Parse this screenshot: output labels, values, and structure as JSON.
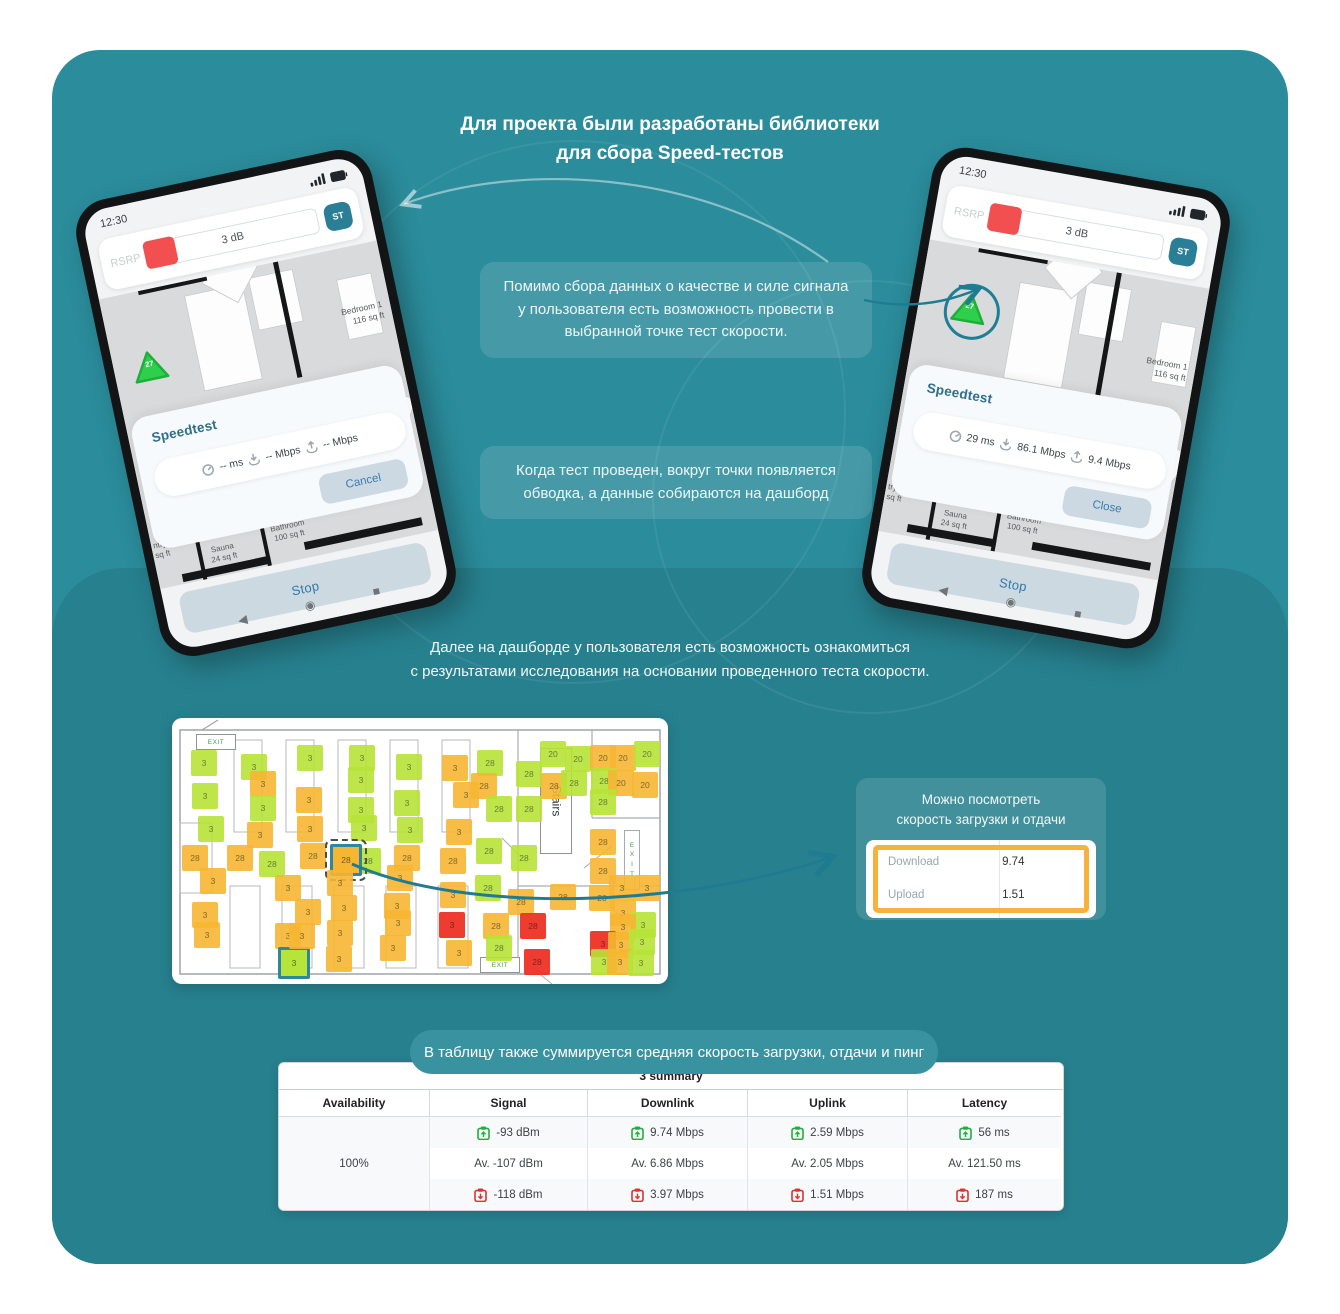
{
  "title": {
    "line1": "Для проекта были разработаны библиотеки",
    "line2": "для сбора Speed-тестов"
  },
  "callouts": {
    "first": "Помимо сбора данных о качестве и силе сигнала у пользователя есть возможность провести в выбранной точке тест скорости.",
    "second": "Когда тест проведен, вокруг точки появляется обводка, а данные собираются на дашборд",
    "dashboard_line1": "Далее на дашборде у пользователя есть возможность ознакомиться",
    "dashboard_line2": "с результатами исследования на основании проведенного теста скорости.",
    "table_banner": "В таблицу также суммируется средняя скорость загрузки, отдачи и пинг"
  },
  "phones": {
    "left": {
      "time": "12:30",
      "rsrp_label": "RSRP",
      "db_value": "3 dB",
      "st_label": "ST",
      "marker_value": "27",
      "speedtest_title": "Speedtest",
      "ping": "-- ms",
      "download": "-- Mbps",
      "upload": "-- Mbps",
      "action_label": "Cancel",
      "stop_label": "Stop",
      "bedroom": "Bedroom 1",
      "bedroom_area": "116 sq ft",
      "bathroom": "Bathroom",
      "bathroom_area": "100 sq ft",
      "sauna": "Sauna",
      "sauna_area": "24 sq ft",
      "pantry": "ntry",
      "pantry_area": "sq ft"
    },
    "right": {
      "time": "12:30",
      "rsrp_label": "RSRP",
      "db_value": "3 dB",
      "st_label": "ST",
      "marker_value": "27",
      "speedtest_title": "Speedtest",
      "ping": "29 ms",
      "download": "86.1 Mbps",
      "upload": "9.4 Mbps",
      "action_label": "Close",
      "stop_label": "Stop",
      "bedroom": "Bedroom 1",
      "bedroom_area": "116 sq ft",
      "bathroom": "Bathroom",
      "bathroom_area": "100 sq ft",
      "sauna": "Sauna",
      "sauna_area": "24 sq ft",
      "pantry": "try",
      "pantry_area": "sq ft"
    }
  },
  "speed_card": {
    "title_line1": "Можно посмотреть",
    "title_line2": "скорость загрузки и отдачи",
    "rows": [
      {
        "label": "Download",
        "value": "9.74"
      },
      {
        "label": "Upload",
        "value": "1.51"
      }
    ]
  },
  "summary_table": {
    "heading": "3 summary",
    "columns": [
      "Availability",
      "Signal",
      "Downlink",
      "Uplink",
      "Latency"
    ],
    "availability": "100%",
    "best": {
      "signal": "-93 dBm",
      "downlink": "9.74 Mbps",
      "uplink": "2.59 Mbps",
      "latency": "56 ms"
    },
    "average": {
      "signal": "Av. -107 dBm",
      "downlink": "Av. 6.86 Mbps",
      "uplink": "Av. 2.05 Mbps",
      "latency": "Av. 121.50 ms"
    },
    "worst": {
      "signal": "-118 dBm",
      "downlink": "3.97 Mbps",
      "uplink": "1.51 Mbps",
      "latency": "187 ms"
    }
  },
  "floorplan": {
    "exit_label": "EXIT",
    "stairs_label": "Stairs",
    "legend": {
      "green": "#b7e438",
      "orange": "#f7b632",
      "red": "#ee3226"
    },
    "squares": [
      [
        19,
        32,
        "g",
        "3"
      ],
      [
        20,
        65,
        "g",
        "3"
      ],
      [
        26,
        98,
        "g",
        "3"
      ],
      [
        10,
        127,
        "o",
        "28"
      ],
      [
        28,
        150,
        "o",
        "3"
      ],
      [
        20,
        184,
        "o",
        "3"
      ],
      [
        22,
        204,
        "o",
        "3"
      ],
      [
        69,
        36,
        "g",
        "3"
      ],
      [
        78,
        53,
        "o",
        "3"
      ],
      [
        78,
        77,
        "g",
        "3"
      ],
      [
        75,
        104,
        "o",
        "3"
      ],
      [
        55,
        127,
        "o",
        "28"
      ],
      [
        87,
        133,
        "g",
        "28"
      ],
      [
        103,
        157,
        "o",
        "3"
      ],
      [
        103,
        205,
        "o",
        "3"
      ],
      [
        109,
        232,
        "g",
        "3",
        "sel2"
      ],
      [
        125,
        27,
        "g",
        "3"
      ],
      [
        124,
        69,
        "o",
        "3"
      ],
      [
        125,
        98,
        "o",
        "3"
      ],
      [
        128,
        125,
        "o",
        "28"
      ],
      [
        123,
        181,
        "o",
        "3"
      ],
      [
        117,
        205,
        "o",
        "3"
      ],
      [
        177,
        27,
        "g",
        "3"
      ],
      [
        176,
        49,
        "g",
        "3"
      ],
      [
        176,
        79,
        "g",
        "3"
      ],
      [
        179,
        97,
        "g",
        "3"
      ],
      [
        183,
        130,
        "g",
        "28"
      ],
      [
        161,
        129,
        "o",
        "28",
        "sel1"
      ],
      [
        155,
        152,
        "o",
        "3"
      ],
      [
        159,
        177,
        "o",
        "3"
      ],
      [
        155,
        202,
        "o",
        "3"
      ],
      [
        154,
        228,
        "o",
        "3"
      ],
      [
        224,
        36,
        "g",
        "3"
      ],
      [
        222,
        72,
        "g",
        "3"
      ],
      [
        225,
        99,
        "g",
        "3"
      ],
      [
        222,
        127,
        "o",
        "28"
      ],
      [
        215,
        147,
        "o",
        "3"
      ],
      [
        212,
        175,
        "o",
        "3"
      ],
      [
        213,
        192,
        "o",
        "3"
      ],
      [
        208,
        217,
        "o",
        "3"
      ],
      [
        270,
        37,
        "o",
        "3"
      ],
      [
        305,
        32,
        "g",
        "28"
      ],
      [
        299,
        55,
        "o",
        "28"
      ],
      [
        281,
        64,
        "o",
        "3"
      ],
      [
        314,
        78,
        "g",
        "28"
      ],
      [
        274,
        101,
        "o",
        "3"
      ],
      [
        268,
        130,
        "o",
        "28"
      ],
      [
        304,
        120,
        "g",
        "28"
      ],
      [
        303,
        157,
        "g",
        "28"
      ],
      [
        268,
        164,
        "o",
        "3"
      ],
      [
        267,
        194,
        "r",
        "3"
      ],
      [
        274,
        222,
        "o",
        "3"
      ],
      [
        311,
        195,
        "o",
        "28"
      ],
      [
        314,
        217,
        "g",
        "28"
      ],
      [
        344,
        43,
        "g",
        "28"
      ],
      [
        344,
        78,
        "g",
        "28"
      ],
      [
        339,
        127,
        "g",
        "28"
      ],
      [
        336,
        171,
        "o",
        "28"
      ],
      [
        348,
        195,
        "r",
        "28"
      ],
      [
        352,
        231,
        "r",
        "28"
      ],
      [
        368,
        23,
        "g",
        "20"
      ],
      [
        369,
        55,
        "o",
        "28"
      ],
      [
        389,
        52,
        "g",
        "28"
      ],
      [
        393,
        28,
        "g",
        "20"
      ],
      [
        378,
        166,
        "o",
        "28"
      ],
      [
        418,
        27,
        "o",
        "20"
      ],
      [
        438,
        27,
        "o",
        "20"
      ],
      [
        462,
        23,
        "g",
        "20"
      ],
      [
        419,
        50,
        "g",
        "28"
      ],
      [
        436,
        52,
        "o",
        "20"
      ],
      [
        460,
        54,
        "o",
        "20"
      ],
      [
        418,
        71,
        "g",
        "28"
      ],
      [
        418,
        111,
        "o",
        "28"
      ],
      [
        418,
        140,
        "o",
        "28"
      ],
      [
        417,
        167,
        "o",
        "28"
      ],
      [
        437,
        157,
        "o",
        "3"
      ],
      [
        462,
        157,
        "o",
        "3"
      ],
      [
        438,
        182,
        "o",
        "3"
      ],
      [
        458,
        194,
        "g",
        "3"
      ],
      [
        438,
        196,
        "o",
        "3"
      ],
      [
        418,
        213,
        "r",
        "3"
      ],
      [
        436,
        214,
        "o",
        "3"
      ],
      [
        457,
        211,
        "g",
        "3"
      ],
      [
        419,
        231,
        "g",
        "3"
      ],
      [
        435,
        231,
        "o",
        "3"
      ],
      [
        456,
        232,
        "g",
        "3"
      ]
    ]
  },
  "colors": {
    "teal_light": "#2b8c9b",
    "teal_dark": "#27808e",
    "accent_button": "#2a7f96",
    "rsrp_red": "#f25050",
    "highlight_orange": "#f6b23c",
    "table_green": "#1faf3a",
    "table_red": "#e03131"
  }
}
